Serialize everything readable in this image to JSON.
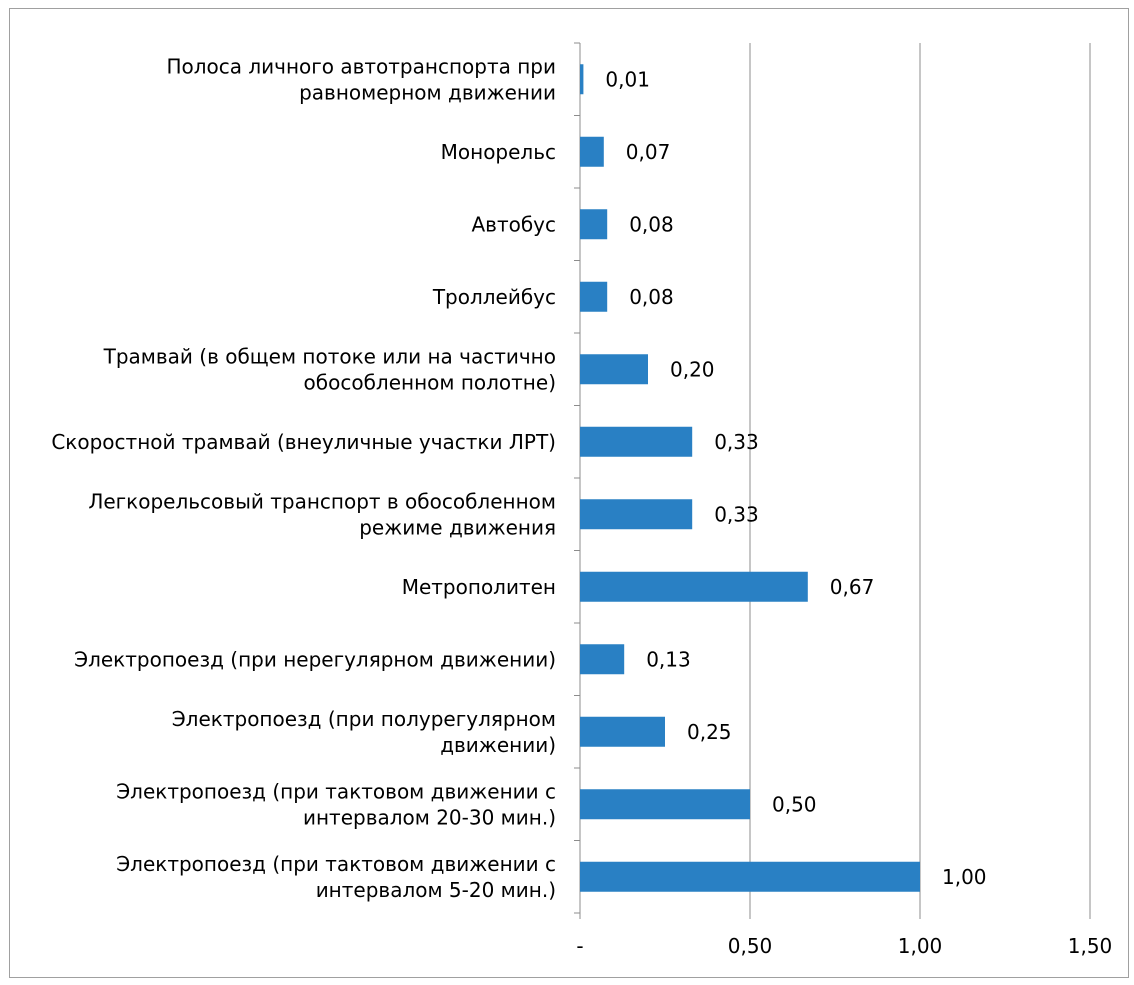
{
  "chart_data": {
    "type": "bar",
    "orientation": "horizontal",
    "categories": [
      [
        "Полоса личного автотранспорта при",
        "равномерном движении"
      ],
      [
        "Монорельс"
      ],
      [
        "Автобус"
      ],
      [
        "Троллейбус"
      ],
      [
        "Трамвай (в общем потоке или на частично",
        "обособленном полотне)"
      ],
      [
        "Скоростной трамвай (внеуличные участки ЛРТ)"
      ],
      [
        "Легкорельсовый транспорт в обособленном",
        "режиме движения"
      ],
      [
        "Метрополитен"
      ],
      [
        "Электропоезд (при нерегулярном  движении)"
      ],
      [
        "Электропоезд (при полурегулярном",
        "движении)"
      ],
      [
        "Электропоезд (при тактовом движении с",
        "интервалом 20-30 мин.)"
      ],
      [
        "Электропоезд (при тактовом движении с",
        "интервалом 5-20 мин.)"
      ]
    ],
    "values": [
      0.01,
      0.07,
      0.08,
      0.08,
      0.2,
      0.33,
      0.33,
      0.67,
      0.13,
      0.25,
      0.5,
      1.0
    ],
    "value_labels": [
      "0,01",
      "0,07",
      "0,08",
      "0,08",
      "0,20",
      "0,33",
      "0,33",
      "0,67",
      "0,13",
      "0,25",
      "0,50",
      "1,00"
    ],
    "x_ticks": [
      0,
      0.5,
      1.0,
      1.5
    ],
    "x_tick_labels": [
      "-",
      "0,50",
      "1,00",
      "1,50"
    ],
    "xlim": [
      0,
      1.5
    ],
    "grid": "vertical",
    "legend": "none",
    "bar_color": "#2980c4"
  }
}
